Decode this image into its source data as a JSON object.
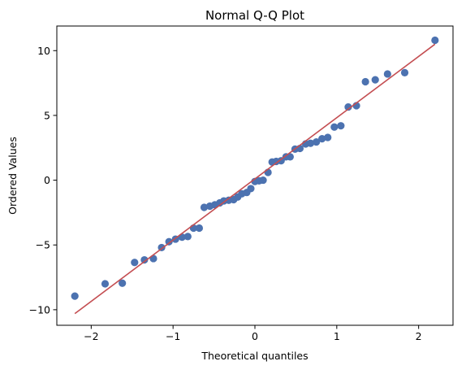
{
  "chart_data": {
    "type": "scatter",
    "title": "Normal Q-Q Plot",
    "xlabel": "Theoretical quantiles",
    "ylabel": "Ordered Values",
    "xlim": [
      -2.42,
      2.42
    ],
    "ylim": [
      -11.2,
      11.9
    ],
    "xticks": [
      -2,
      -1,
      0,
      1,
      2
    ],
    "yticks": [
      -10,
      -5,
      0,
      5,
      10
    ],
    "grid": false,
    "colors": {
      "points": "#4c72b0",
      "line": "#c44e52"
    },
    "fit_line": {
      "x": [
        -2.2,
        2.2
      ],
      "y": [
        -10.3,
        10.5
      ]
    },
    "points": [
      {
        "x": -2.2,
        "y": -8.95
      },
      {
        "x": -1.83,
        "y": -8.0
      },
      {
        "x": -1.62,
        "y": -7.95
      },
      {
        "x": -1.47,
        "y": -6.35
      },
      {
        "x": -1.35,
        "y": -6.15
      },
      {
        "x": -1.24,
        "y": -6.05
      },
      {
        "x": -1.14,
        "y": -5.2
      },
      {
        "x": -1.05,
        "y": -4.75
      },
      {
        "x": -0.97,
        "y": -4.55
      },
      {
        "x": -0.89,
        "y": -4.4
      },
      {
        "x": -0.82,
        "y": -4.35
      },
      {
        "x": -0.75,
        "y": -3.7
      },
      {
        "x": -0.68,
        "y": -3.7
      },
      {
        "x": -0.62,
        "y": -2.1
      },
      {
        "x": -0.55,
        "y": -2.0
      },
      {
        "x": -0.49,
        "y": -1.9
      },
      {
        "x": -0.43,
        "y": -1.75
      },
      {
        "x": -0.38,
        "y": -1.6
      },
      {
        "x": -0.32,
        "y": -1.55
      },
      {
        "x": -0.26,
        "y": -1.5
      },
      {
        "x": -0.21,
        "y": -1.3
      },
      {
        "x": -0.16,
        "y": -1.05
      },
      {
        "x": -0.1,
        "y": -0.95
      },
      {
        "x": -0.05,
        "y": -0.65
      },
      {
        "x": 0.0,
        "y": -0.1
      },
      {
        "x": 0.05,
        "y": -0.05
      },
      {
        "x": 0.1,
        "y": 0.0
      },
      {
        "x": 0.16,
        "y": 0.6
      },
      {
        "x": 0.21,
        "y": 1.4
      },
      {
        "x": 0.26,
        "y": 1.45
      },
      {
        "x": 0.32,
        "y": 1.5
      },
      {
        "x": 0.38,
        "y": 1.8
      },
      {
        "x": 0.43,
        "y": 1.8
      },
      {
        "x": 0.49,
        "y": 2.4
      },
      {
        "x": 0.55,
        "y": 2.45
      },
      {
        "x": 0.62,
        "y": 2.8
      },
      {
        "x": 0.68,
        "y": 2.85
      },
      {
        "x": 0.75,
        "y": 2.95
      },
      {
        "x": 0.82,
        "y": 3.2
      },
      {
        "x": 0.89,
        "y": 3.3
      },
      {
        "x": 0.97,
        "y": 4.1
      },
      {
        "x": 1.05,
        "y": 4.2
      },
      {
        "x": 1.14,
        "y": 5.65
      },
      {
        "x": 1.24,
        "y": 5.75
      },
      {
        "x": 1.35,
        "y": 7.6
      },
      {
        "x": 1.47,
        "y": 7.75
      },
      {
        "x": 1.62,
        "y": 8.2
      },
      {
        "x": 1.83,
        "y": 8.3
      },
      {
        "x": 2.2,
        "y": 10.8
      }
    ]
  }
}
